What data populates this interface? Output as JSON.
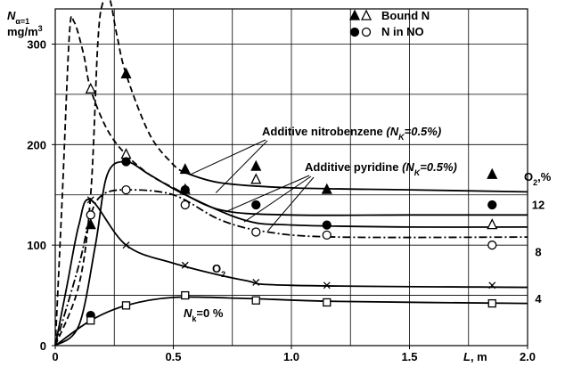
{
  "chart_data": {
    "type": "line",
    "xlim": [
      0,
      2
    ],
    "ylim": [
      0,
      335
    ],
    "xticks": [
      0,
      0.5,
      {
        "value": 1,
        "label": "1.0"
      },
      1.5,
      {
        "value": 2,
        "label": "2.0"
      }
    ],
    "yticks": [
      0,
      100,
      200,
      300
    ],
    "xgrid": [
      0.25,
      0.5,
      0.75,
      1,
      1.25,
      1.5,
      1.75
    ],
    "ygrid": [
      50,
      100,
      150,
      200,
      250,
      300
    ],
    "y2lim": [
      0,
      28.6
    ],
    "y2ticks": [
      4,
      8,
      12
    ],
    "y2label": [
      "O",
      "2",
      ",%"
    ],
    "ylabel": [
      "N",
      "α=1",
      "mg/m",
      "3"
    ],
    "xlabel": [
      "L",
      ", m"
    ],
    "color": "#000000",
    "legend": [
      {
        "markers": [
          "triangle-filled",
          "triangle-open"
        ],
        "label": "Bound N"
      },
      {
        "markers": [
          "circle-filled",
          "circle-open"
        ],
        "label": "N in NO"
      }
    ],
    "annotations": [
      [
        "Additive nitrobenzene ",
        "(N",
        "K",
        "=0.5%)"
      ],
      [
        "Additive pyridine ",
        "(N",
        "K",
        "=0.5%)"
      ],
      [
        "O",
        "2"
      ],
      [
        "N",
        "k",
        "=0 %"
      ]
    ],
    "points": [
      {
        "marker": "triangle-filled",
        "x": [
          0.15,
          0.3,
          0.55,
          0.85,
          1.15,
          1.85
        ],
        "values": [
          120,
          270,
          175,
          178,
          155,
          170
        ]
      },
      {
        "marker": "triangle-open",
        "x": [
          0.15,
          0.3,
          0.55,
          0.85,
          1.15,
          1.85
        ],
        "values": [
          255,
          190,
          155,
          165,
          null,
          120
        ]
      },
      {
        "marker": "circle-filled",
        "x": [
          0.15,
          0.3,
          0.55,
          0.85,
          1.15,
          1.85
        ],
        "values": [
          30,
          183,
          155,
          140,
          120,
          140
        ]
      },
      {
        "marker": "circle-open",
        "x": [
          0.15,
          0.3,
          0.55,
          0.85,
          1.15,
          1.85
        ],
        "values": [
          130,
          155,
          140,
          113,
          110,
          100
        ]
      },
      {
        "marker": "cross",
        "x": [
          0.15,
          0.3,
          0.55,
          0.85,
          1.15,
          1.85
        ],
        "values": [
          145,
          100,
          80,
          63,
          60,
          60
        ]
      },
      {
        "marker": "square-open",
        "x": [
          0.15,
          0.3,
          0.55,
          0.85,
          1.15,
          1.85
        ],
        "values": [
          25,
          40,
          50,
          45,
          43,
          42
        ]
      }
    ],
    "curves": [
      {
        "style": "dashed",
        "x": [
          0,
          0.03,
          0.06,
          0.08,
          0.12,
          0.15,
          0.22,
          0.3,
          0.4,
          0.5
        ],
        "y": [
          0,
          150,
          310,
          322,
          290,
          255,
          215,
          190,
          170,
          157
        ]
      },
      {
        "style": "dashed",
        "x": [
          0,
          0.1,
          0.15,
          0.18,
          0.2,
          0.23,
          0.26,
          0.3,
          0.4,
          0.5,
          0.55
        ],
        "y": [
          0,
          60,
          150,
          300,
          340,
          345,
          310,
          270,
          210,
          180,
          172
        ]
      },
      {
        "style": "solid",
        "x": [
          0.55,
          0.7,
          1,
          1.5,
          2
        ],
        "y": [
          172,
          162,
          157,
          155,
          153
        ]
      },
      {
        "style": "solid",
        "x": [
          0.5,
          0.7,
          1,
          1.5,
          2
        ],
        "y": [
          157,
          135,
          130,
          130,
          130
        ]
      },
      {
        "style": "solid",
        "x": [
          0,
          0.1,
          0.17,
          0.22,
          0.3,
          0.4,
          0.55,
          0.8,
          1,
          1.5,
          2
        ],
        "y": [
          0,
          20,
          100,
          170,
          183,
          170,
          150,
          125,
          120,
          118,
          118
        ]
      },
      {
        "style": "dashdot",
        "x": [
          0,
          0.1,
          0.15,
          0.2,
          0.3,
          0.5,
          0.7,
          0.9,
          1.2,
          2
        ],
        "y": [
          0,
          80,
          130,
          150,
          155,
          150,
          125,
          113,
          108,
          108
        ]
      },
      {
        "style": "solid",
        "x": [
          0,
          0.05,
          0.1,
          0.15,
          0.3,
          0.5,
          0.8,
          1,
          2
        ],
        "y": [
          0,
          60,
          120,
          145,
          100,
          82,
          65,
          60,
          58
        ]
      },
      {
        "style": "solid",
        "x": [
          0,
          0.15,
          0.3,
          0.5,
          0.8,
          1.2,
          2
        ],
        "y": [
          0,
          25,
          40,
          48,
          47,
          44,
          42
        ]
      }
    ]
  }
}
